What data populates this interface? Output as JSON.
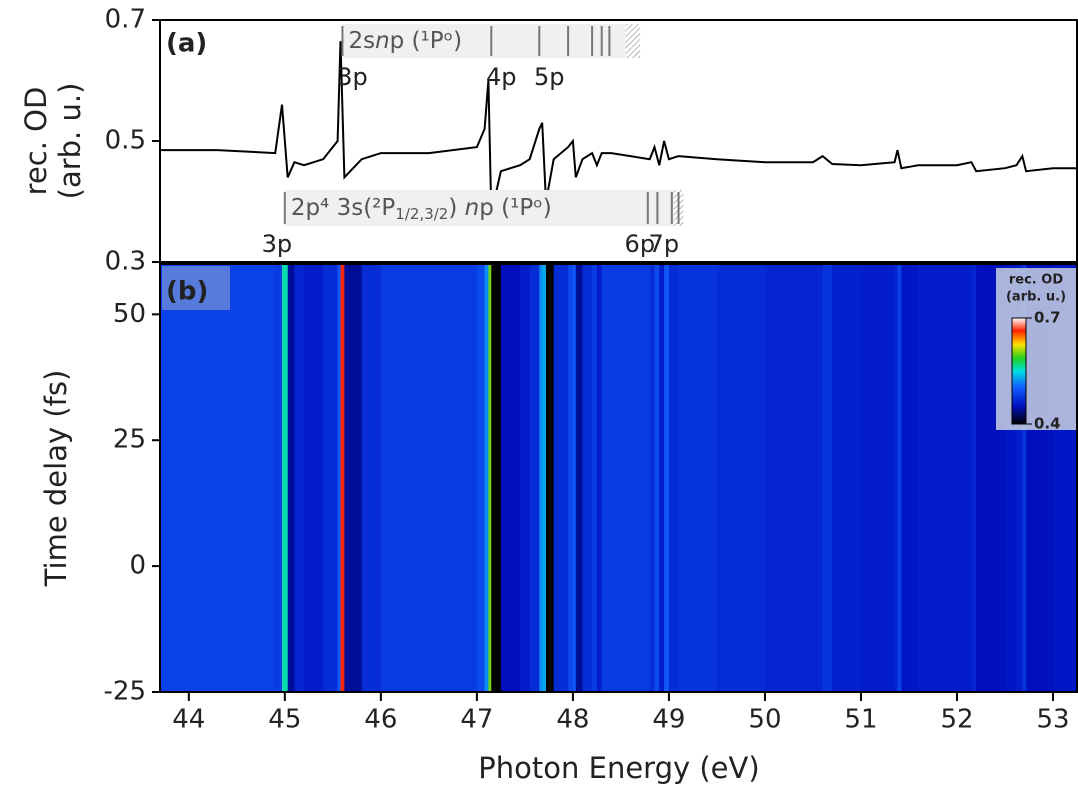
{
  "chart_data": [
    {
      "type": "line",
      "panel_label": "(a)",
      "ylabel": [
        "rec. OD",
        "(arb. u.)"
      ],
      "color": "#000000",
      "ylim": [
        0.3,
        0.7
      ],
      "yticks": [
        0.3,
        0.5,
        0.7
      ],
      "x": [
        43.7,
        44.3,
        44.9,
        44.97,
        45.03,
        45.1,
        45.2,
        45.4,
        45.55,
        45.58,
        45.62,
        45.8,
        46.0,
        46.5,
        47.0,
        47.08,
        47.12,
        47.15,
        47.25,
        47.45,
        47.55,
        47.65,
        47.68,
        47.72,
        47.8,
        47.95,
        48.0,
        48.03,
        48.1,
        48.2,
        48.25,
        48.3,
        48.4,
        48.8,
        48.85,
        48.9,
        48.95,
        49.0,
        49.1,
        49.5,
        50.0,
        50.5,
        50.6,
        50.7,
        51.0,
        51.35,
        51.38,
        51.42,
        51.6,
        52.0,
        52.15,
        52.2,
        52.5,
        52.62,
        52.68,
        52.72,
        53.0,
        53.25
      ],
      "values": [
        0.485,
        0.485,
        0.48,
        0.56,
        0.44,
        0.465,
        0.46,
        0.47,
        0.5,
        0.665,
        0.44,
        0.47,
        0.48,
        0.48,
        0.49,
        0.52,
        0.6,
        0.38,
        0.45,
        0.46,
        0.47,
        0.52,
        0.53,
        0.4,
        0.47,
        0.49,
        0.5,
        0.44,
        0.47,
        0.48,
        0.46,
        0.48,
        0.48,
        0.47,
        0.49,
        0.46,
        0.5,
        0.47,
        0.475,
        0.47,
        0.465,
        0.465,
        0.475,
        0.462,
        0.46,
        0.465,
        0.485,
        0.455,
        0.46,
        0.46,
        0.465,
        0.45,
        0.455,
        0.46,
        0.475,
        0.45,
        0.455,
        0.455
      ],
      "series_labels": [
        {
          "label": [
            {
              "text": "2s"
            },
            {
              "text": "n",
              "style": "italic"
            },
            {
              "text": "p (¹Pᵒ)"
            }
          ],
          "box": [
            45.6,
            48.55,
            48.7
          ],
          "markers": [
            {
              "x": 45.6,
              "label": "3p"
            },
            {
              "x": 47.15,
              "label": "4p"
            },
            {
              "x": 47.65,
              "label": "5p"
            },
            {
              "x": 47.95
            },
            {
              "x": 48.2
            },
            {
              "x": 48.3
            },
            {
              "x": 48.38
            }
          ]
        },
        {
          "label": [
            {
              "text": "2p⁴ 3s(²P"
            },
            {
              "text": "1/2,3/2",
              "style": "sub"
            },
            {
              "text": ") "
            },
            {
              "text": "n",
              "style": "italic"
            },
            {
              "text": "p (¹Pᵒ)"
            }
          ],
          "box": [
            45.0,
            49.05,
            49.15
          ],
          "markers": [
            {
              "x": 45.0,
              "label": "3p"
            },
            {
              "x": 48.78,
              "label": "6p"
            },
            {
              "x": 48.88
            },
            {
              "x": 49.03,
              "label": "7p"
            },
            {
              "x": 49.1
            }
          ]
        }
      ]
    },
    {
      "type": "heatmap",
      "panel_label": "(b)",
      "ylabel": "Time delay  (fs)",
      "xlabel": "Photon Energy  (eV)",
      "xlim": [
        43.7,
        53.26
      ],
      "xticks": [
        44,
        45,
        46,
        47,
        48,
        49,
        50,
        51,
        52,
        53
      ],
      "ylim": [
        -25,
        60
      ],
      "yticks": [
        -25,
        0,
        25,
        50
      ],
      "colorbar": {
        "title": [
          "rec. OD",
          "(arb. u.)"
        ],
        "lim": [
          0.4,
          0.7
        ],
        "ticks": [
          0.4,
          0.7
        ]
      }
    }
  ]
}
